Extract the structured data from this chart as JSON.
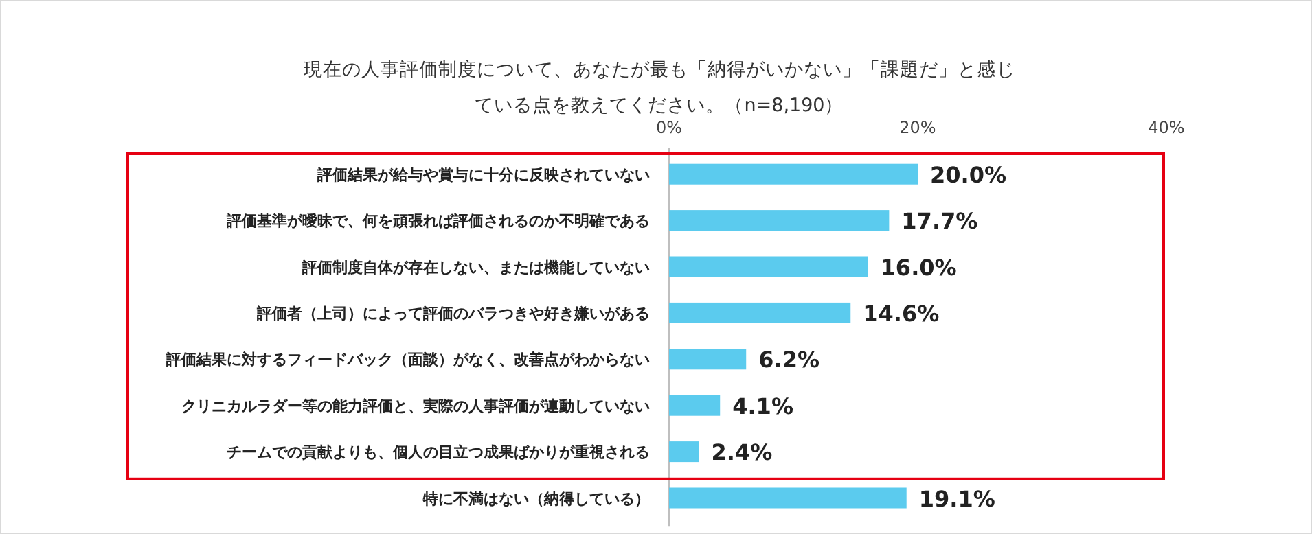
{
  "chart_data": {
    "type": "bar",
    "orientation": "horizontal",
    "title": "現在の人事評価制度について、あなたが最も「納得がいかない」「課題だ」と感じている点を教えてください。（n=8,190）",
    "categories": [
      "評価結果が給与や賞与に十分に反映されていない",
      "評価基準が曖昧で、何を頑張れば評価されるのか不明確である",
      "評価制度自体が存在しない、または機能していない",
      "評価者（上司）によって評価のバラつきや好き嫌いがある",
      "評価結果に対するフィードバック（面談）がなく、改善点がわからない",
      "クリニカルラダー等の能力評価と、実際の人事評価が連動していない",
      "チームでの貢献よりも、個人の目立つ成果ばかりが重視される",
      "特に不満はない（納得している）"
    ],
    "values": [
      20.0,
      17.7,
      16.0,
      14.6,
      6.2,
      4.1,
      2.4,
      19.1
    ],
    "value_labels": [
      "20.0%",
      "17.7%",
      "16.0%",
      "14.6%",
      "6.2%",
      "4.1%",
      "2.4%",
      "19.1%"
    ],
    "color": "#5bcbee",
    "xlim": [
      0,
      40
    ],
    "xticks": [
      {
        "value": 0,
        "label": "0%"
      },
      {
        "value": 20,
        "label": "20%"
      },
      {
        "value": 40,
        "label": "40%"
      }
    ]
  }
}
